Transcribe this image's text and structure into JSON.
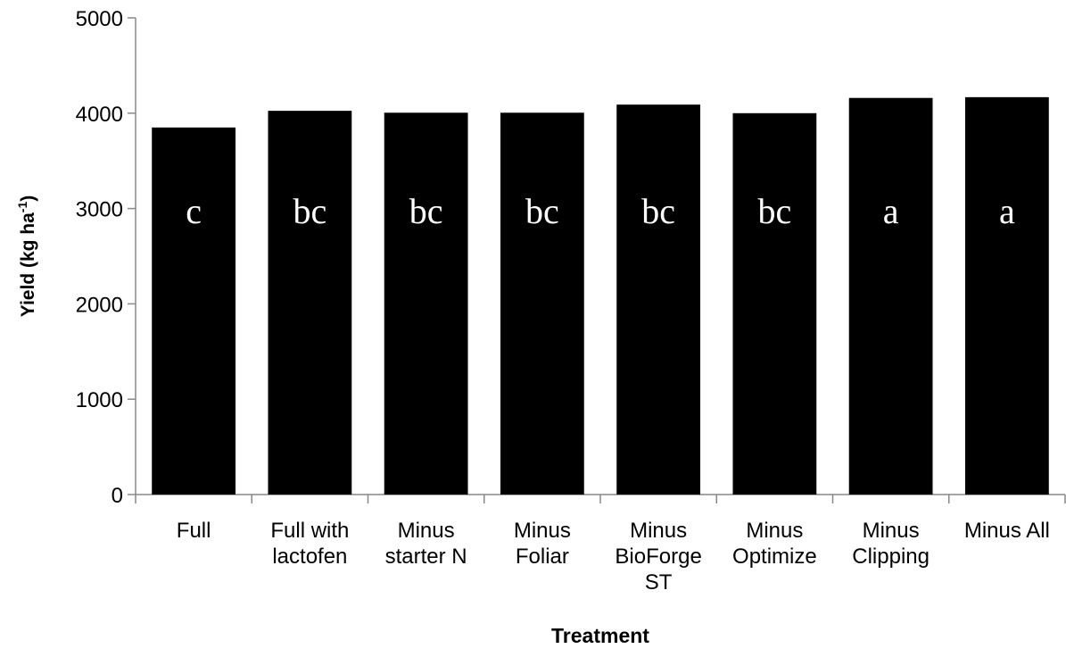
{
  "chart_data": {
    "type": "bar",
    "categories": [
      "Full",
      "Full with lactofen",
      "Minus starter N",
      "Minus Foliar",
      "Minus BioForge ST",
      "Minus Optimize",
      "Minus Clipping",
      "Minus All"
    ],
    "values": [
      3850,
      4025,
      4005,
      4005,
      4090,
      4000,
      4160,
      4168
    ],
    "letters": [
      "c",
      "bc",
      "bc",
      "bc",
      "bc",
      "bc",
      "a",
      "a"
    ],
    "color": "#000000",
    "x_label": "Treatment",
    "y_label": {
      "text": "Yield (kg ha",
      "sup": "-1",
      "end": ")"
    },
    "ylim": [
      0,
      5000
    ],
    "yticks": [
      0,
      1000,
      2000,
      3000,
      4000,
      5000
    ],
    "grid": false
  }
}
